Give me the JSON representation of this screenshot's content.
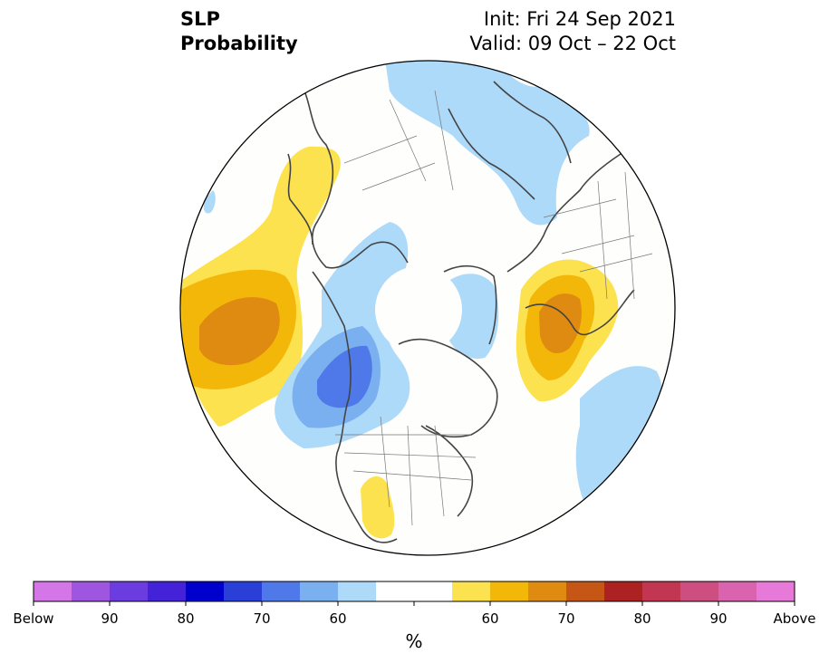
{
  "header": {
    "title_line1": "SLP",
    "title_line2": "Probability",
    "init": "Init: Fri 24 Sep 2021",
    "valid": "Valid: 09 Oct – 22 Oct"
  },
  "colorbar": {
    "colors": [
      "#d475e8",
      "#9e55e0",
      "#6b3ce0",
      "#4422d8",
      "#0000cc",
      "#2a3fd8",
      "#4f78e8",
      "#7aaff0",
      "#aedafa",
      "#ffffff",
      "#ffffff",
      "#fde24f",
      "#f3b70a",
      "#df8a10",
      "#c65616",
      "#ac2222",
      "#c23651",
      "#cd4f82",
      "#d963ae",
      "#e77ad9"
    ],
    "labels": [
      "Below",
      "90",
      "80",
      "70",
      "60",
      "60",
      "70",
      "80",
      "90",
      "Above"
    ],
    "unit": "%"
  },
  "legend_meaning": {
    "blue_shades": "below-normal probability",
    "yellow_red_shades": "above-normal probability"
  }
}
